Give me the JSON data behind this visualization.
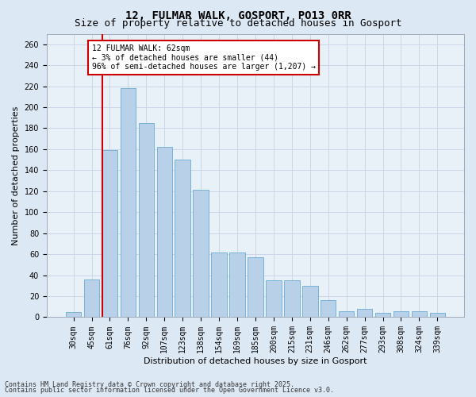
{
  "title1": "12, FULMAR WALK, GOSPORT, PO13 0RR",
  "title2": "Size of property relative to detached houses in Gosport",
  "xlabel": "Distribution of detached houses by size in Gosport",
  "ylabel": "Number of detached properties",
  "categories": [
    "30sqm",
    "45sqm",
    "61sqm",
    "76sqm",
    "92sqm",
    "107sqm",
    "123sqm",
    "138sqm",
    "154sqm",
    "169sqm",
    "185sqm",
    "200sqm",
    "215sqm",
    "231sqm",
    "246sqm",
    "262sqm",
    "277sqm",
    "293sqm",
    "308sqm",
    "324sqm",
    "339sqm"
  ],
  "values": [
    5,
    36,
    159,
    218,
    185,
    162,
    150,
    121,
    62,
    62,
    57,
    35,
    35,
    30,
    16,
    6,
    8,
    4,
    6,
    6,
    4
  ],
  "bar_color": "#b8d0e8",
  "bar_edge_color": "#6aaad4",
  "highlight_index": 2,
  "highlight_color": "#cc0000",
  "annotation_text": "12 FULMAR WALK: 62sqm\n← 3% of detached houses are smaller (44)\n96% of semi-detached houses are larger (1,207) →",
  "annotation_box_color": "#ffffff",
  "annotation_box_edge": "#cc0000",
  "ylim": [
    0,
    270
  ],
  "yticks": [
    0,
    20,
    40,
    60,
    80,
    100,
    120,
    140,
    160,
    180,
    200,
    220,
    240,
    260
  ],
  "footer1": "Contains HM Land Registry data © Crown copyright and database right 2025.",
  "footer2": "Contains public sector information licensed under the Open Government Licence v3.0.",
  "grid_color": "#ccd6e8",
  "background_color": "#dde8f5",
  "plot_bg_color": "#e8f0f8",
  "title_fontsize": 10,
  "subtitle_fontsize": 9,
  "axis_label_fontsize": 8,
  "tick_fontsize": 7,
  "annotation_fontsize": 7,
  "footer_fontsize": 6
}
